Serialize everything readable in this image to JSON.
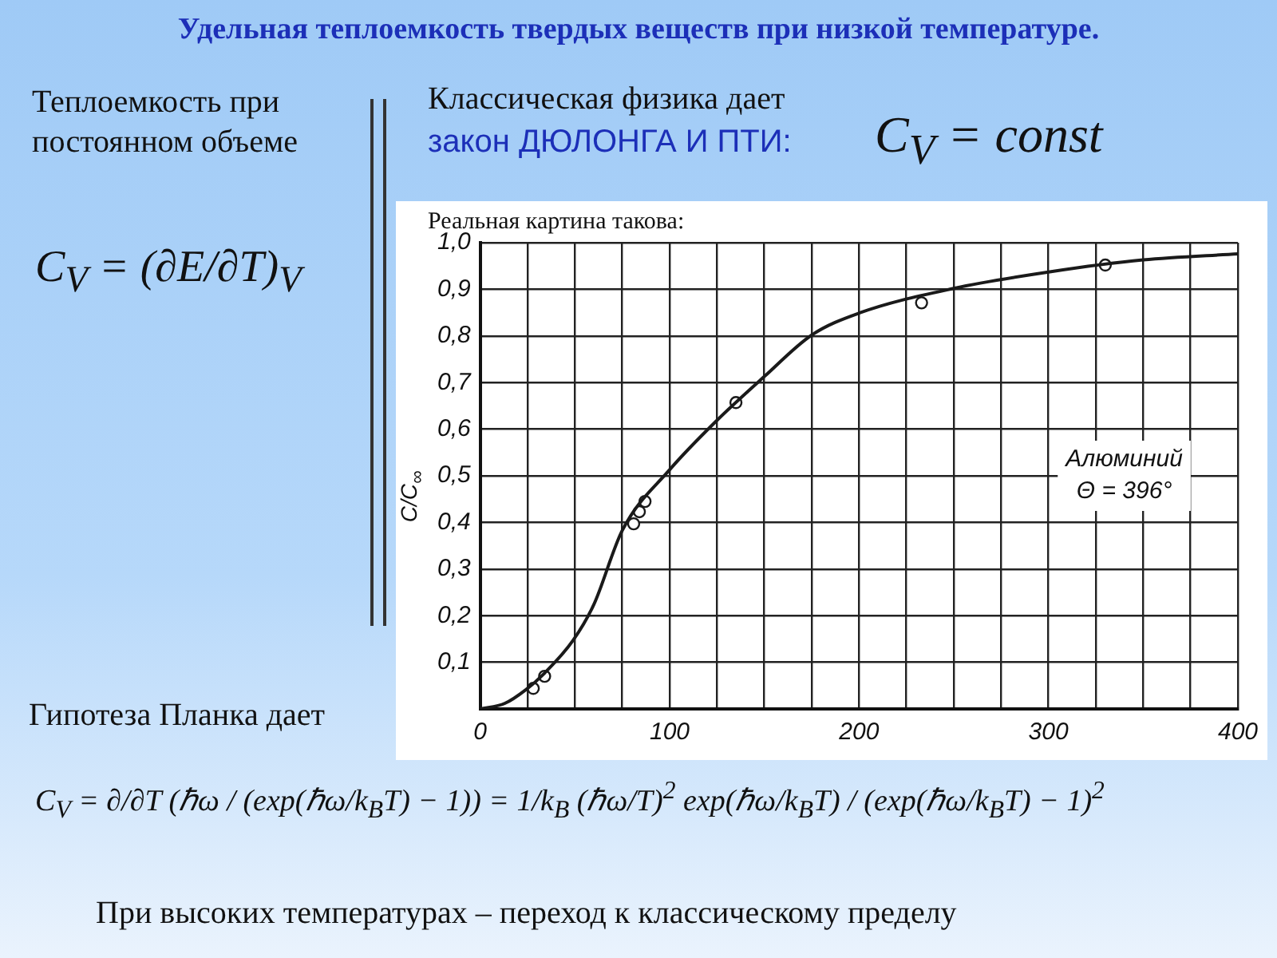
{
  "chart_data": {
    "type": "line",
    "title": "Удельная теплоемкость твердых веществ при низкой температуре.",
    "subtitle": "Реальная картина такова:",
    "ylabel": "C/C$_{∞}$",
    "series": [
      {
        "type": "line",
        "color": "#1a1a1a",
        "marker": "none",
        "x": [
          0,
          13,
          24,
          34,
          49,
          60,
          75,
          100,
          125,
          150,
          175,
          200,
          250,
          300,
          350,
          400
        ],
        "values": [
          0,
          0.012,
          0.041,
          0.077,
          0.147,
          0.224,
          0.383,
          0.513,
          0.619,
          0.713,
          0.802,
          0.849,
          0.902,
          0.937,
          0.963,
          0.976
        ]
      },
      {
        "type": "scatter",
        "color": "#1a1a1a",
        "marker": "circle",
        "x": [
          28,
          34,
          81,
          84,
          87,
          135,
          233,
          330
        ],
        "values": [
          0.044,
          0.07,
          0.397,
          0.423,
          0.445,
          0.657,
          0.871,
          0.952
        ]
      }
    ],
    "xlim": [
      0,
      400
    ],
    "xticks": [
      0,
      {
        "value": 25,
        "label": null
      },
      {
        "value": 50,
        "label": null
      },
      {
        "value": 75,
        "label": null
      },
      100,
      {
        "value": 125,
        "label": null
      },
      {
        "value": 150,
        "label": null
      },
      {
        "value": 175,
        "label": null
      },
      200,
      {
        "value": 225,
        "label": null
      },
      {
        "value": 250,
        "label": null
      },
      {
        "value": 275,
        "label": null
      },
      300,
      {
        "value": 325,
        "label": null
      },
      {
        "value": 350,
        "label": null
      },
      {
        "value": 375,
        "label": null
      },
      400
    ],
    "ylim": [
      0,
      1
    ],
    "yticks": [
      {
        "value": 0,
        "label": null
      },
      {
        "value": 0.1,
        "label": "0,1"
      },
      {
        "value": 0.2,
        "label": "0,2"
      },
      {
        "value": 0.3,
        "label": "0,3"
      },
      {
        "value": 0.4,
        "label": "0,4"
      },
      {
        "value": 0.5,
        "label": "0,5"
      },
      {
        "value": 0.6,
        "label": "0,6"
      },
      {
        "value": 0.7,
        "label": "0,7"
      },
      {
        "value": 0.8,
        "label": "0,8"
      },
      {
        "value": 0.9,
        "label": "0,9"
      },
      {
        "value": 1.0,
        "label": "1,0"
      }
    ],
    "grid": true,
    "legend": false,
    "annotations": [
      "Теплоемкость при постоянном объеме",
      "Классическая физика дает",
      "закон ДЮЛОНГА И ПТИ:",
      "C$_{V}$ = const",
      "C$_{V}$ = (∂E/∂T)$_{V}$",
      "Гипотеза Планка дает",
      "C$_{V}$ = ∂/∂T (ℏω / (exp(ℏω/k$_{B}$T) − 1)) = 1/k$_{B}$ (ℏω/T)$^{2}$ exp(ℏω/k$_{B}$T) / (exp(ℏω/k$_{B}$T) − 1)$^{2}$",
      "При высоких температурах – переход к классическому пределу",
      "Алюминий",
      "Θ = 396°"
    ]
  }
}
